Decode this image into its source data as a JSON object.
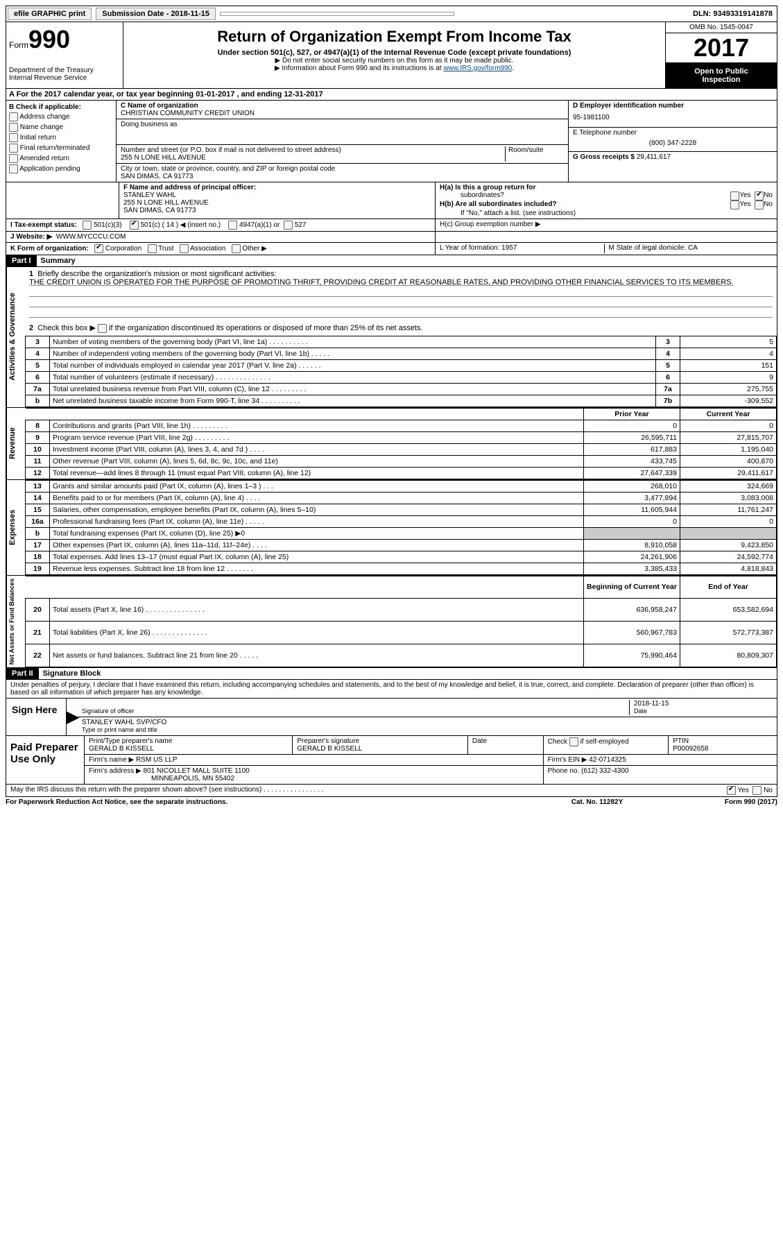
{
  "topbar": {
    "efile": "efile GRAPHIC print",
    "submission": "Submission Date - 2018-11-15",
    "dln": "DLN: 93493319141878"
  },
  "header": {
    "form_word": "Form",
    "form_no": "990",
    "dept1": "Department of the Treasury",
    "dept2": "Internal Revenue Service",
    "title": "Return of Organization Exempt From Income Tax",
    "sub": "Under section 501(c), 527, or 4947(a)(1) of the Internal Revenue Code (except private foundations)",
    "note1": "▶ Do not enter social security numbers on this form as it may be made public.",
    "note2": "▶ Information about Form 990 and its instructions is at ",
    "link": "www.IRS.gov/form990",
    "omb": "OMB No. 1545-0047",
    "year": "2017",
    "open1": "Open to Public",
    "open2": "Inspection"
  },
  "row_a": "A  For the 2017 calendar year, or tax year beginning 01-01-2017    , and ending 12-31-2017",
  "col_b": {
    "hdr": "B Check if applicable:",
    "items": [
      "Address change",
      "Name change",
      "Initial return",
      "Final return/terminated",
      "Amended return",
      "Application pending"
    ]
  },
  "col_c": {
    "name_lbl": "C Name of organization",
    "name": "CHRISTIAN COMMUNITY CREDIT UNION",
    "dba_lbl": "Doing business as",
    "dba": "",
    "addr_lbl": "Number and street (or P.O. box if mail is not delivered to street address)",
    "room_lbl": "Room/suite",
    "addr": "255 N LONE HILL AVENUE",
    "city_lbl": "City or town, state or province, country, and ZIP or foreign postal code",
    "city": "SAN DIMAS, CA  91773"
  },
  "col_d": {
    "ein_lbl": "D Employer identification number",
    "ein": "95-1981100",
    "tel_lbl": "E Telephone number",
    "tel": "(800) 347-2228",
    "gross_lbl": "G Gross receipts $",
    "gross": "29,411,617"
  },
  "row_f": {
    "lbl": "F Name and address of principal officer:",
    "name": "STANLEY WAHL",
    "addr1": "255 N LONE HILL AVENUE",
    "addr2": "SAN DIMAS, CA  91773"
  },
  "row_h": {
    "ha": "H(a)  Is this a group return for",
    "ha2": "subordinates?",
    "hb": "H(b)  Are all subordinates included?",
    "hb2": "If \"No,\" attach a list. (see instructions)",
    "hc": "H(c)  Group exemption number ▶",
    "yes": "Yes",
    "no": "No"
  },
  "row_i": {
    "lbl": "I  Tax-exempt status:",
    "o1": "501(c)(3)",
    "o2": "501(c) ( 14 ) ◀ (insert no.)",
    "o3": "4947(a)(1) or",
    "o4": "527"
  },
  "row_j": {
    "lbl": "J  Website: ▶",
    "val": "WWW.MYCCCU.COM"
  },
  "row_k": {
    "lbl": "K Form of organization:",
    "o1": "Corporation",
    "o2": "Trust",
    "o3": "Association",
    "o4": "Other ▶"
  },
  "row_lm": {
    "l": "L Year of formation: 1957",
    "m": "M State of legal domicile: CA"
  },
  "part1": {
    "hdr": "Part I",
    "title": "Summary",
    "l1_lbl": "1  Briefly describe the organization's mission or most significant activities:",
    "l1_text": "THE CREDIT UNION IS OPERATED FOR THE PURPOSE OF PROMOTING THRIFT, PROVIDING CREDIT AT REASONABLE RATES, AND PROVIDING OTHER FINANCIAL SERVICES TO ITS MEMBERS.",
    "l2": "2  Check this box ▶      if the organization discontinued its operations or disposed of more than 25% of its net assets.",
    "vtab1": "Activities & Governance",
    "vtab2": "Revenue",
    "vtab3": "Expenses",
    "vtab4": "Net Assets or Fund Balances",
    "gov_rows": [
      {
        "n": "3",
        "d": "Number of voting members of the governing body (Part VI, line 1a)  .   .   .   .   .   .   .   .   .   .",
        "b": "3",
        "v": "5"
      },
      {
        "n": "4",
        "d": "Number of independent voting members of the governing body (Part VI, line 1b)   .   .   .   .   .",
        "b": "4",
        "v": "4"
      },
      {
        "n": "5",
        "d": "Total number of individuals employed in calendar year 2017 (Part V, line 2a)   .   .   .   .   .   .",
        "b": "5",
        "v": "151"
      },
      {
        "n": "6",
        "d": "Total number of volunteers (estimate if necessary)   .   .   .   .   .   .   .   .   .   .   .   .   .   .",
        "b": "6",
        "v": "9"
      },
      {
        "n": "7a",
        "d": "Total unrelated business revenue from Part VIII, column (C), line 12  .   .   .   .   .   .   .   .   .",
        "b": "7a",
        "v": "275,755"
      },
      {
        "n": "b",
        "d": "Net unrelated business taxable income from Form 990-T, line 34  .   .   .   .   .   .   .   .   .   .",
        "b": "7b",
        "v": "-309,552"
      }
    ],
    "py_hdr": "Prior Year",
    "cy_hdr": "Current Year",
    "rev_rows": [
      {
        "n": "8",
        "d": "Contributions and grants (Part VIII, line 1h)   .   .   .   .   .   .   .   .   .",
        "py": "0",
        "cy": "0"
      },
      {
        "n": "9",
        "d": "Program service revenue (Part VIII, line 2g)   .   .   .   .   .   .   .   .   .",
        "py": "26,595,711",
        "cy": "27,815,707"
      },
      {
        "n": "10",
        "d": "Investment income (Part VIII, column (A), lines 3, 4, and 7d )   .   .   .   .",
        "py": "617,883",
        "cy": "1,195,040"
      },
      {
        "n": "11",
        "d": "Other revenue (Part VIII, column (A), lines 5, 6d, 8c, 9c, 10c, and 11e)",
        "py": "433,745",
        "cy": "400,870"
      },
      {
        "n": "12",
        "d": "Total revenue—add lines 8 through 11 (must equal Part VIII, column (A), line 12)",
        "py": "27,647,339",
        "cy": "29,411,617"
      }
    ],
    "exp_rows": [
      {
        "n": "13",
        "d": "Grants and similar amounts paid (Part IX, column (A), lines 1–3 )  .   .   .",
        "py": "268,010",
        "cy": "324,669"
      },
      {
        "n": "14",
        "d": "Benefits paid to or for members (Part IX, column (A), line 4)  .   .   .   .",
        "py": "3,477,894",
        "cy": "3,083,008"
      },
      {
        "n": "15",
        "d": "Salaries, other compensation, employee benefits (Part IX, column (A), lines 5–10)",
        "py": "11,605,944",
        "cy": "11,761,247"
      },
      {
        "n": "16a",
        "d": "Professional fundraising fees (Part IX, column (A), line 11e)  .   .   .   .   .",
        "py": "0",
        "cy": "0"
      },
      {
        "n": "b",
        "d": "Total fundraising expenses (Part IX, column (D), line 25) ▶0",
        "py": "SHADE",
        "cy": "SHADE"
      },
      {
        "n": "17",
        "d": "Other expenses (Part IX, column (A), lines 11a–11d, 11f–24e)  .   .   .   .",
        "py": "8,910,058",
        "cy": "9,423,850"
      },
      {
        "n": "18",
        "d": "Total expenses. Add lines 13–17 (must equal Part IX, column (A), line 25)",
        "py": "24,261,906",
        "cy": "24,592,774"
      },
      {
        "n": "19",
        "d": "Revenue less expenses. Subtract line 18 from line 12  .   .   .   .   .   .   .",
        "py": "3,385,433",
        "cy": "4,818,843"
      }
    ],
    "by_hdr": "Beginning of Current Year",
    "ey_hdr": "End of Year",
    "na_rows": [
      {
        "n": "20",
        "d": "Total assets (Part X, line 16)  .   .   .   .   .   .   .   .   .   .   .   .   .   .   .",
        "py": "636,958,247",
        "cy": "653,582,694"
      },
      {
        "n": "21",
        "d": "Total liabilities (Part X, line 26)  .   .   .   .   .   .   .   .   .   .   .   .   .   .",
        "py": "560,967,783",
        "cy": "572,773,387"
      },
      {
        "n": "22",
        "d": "Net assets or fund balances. Subtract line 21 from line 20  .   .   .   .   .",
        "py": "75,990,464",
        "cy": "80,809,307"
      }
    ]
  },
  "part2": {
    "hdr": "Part II",
    "title": "Signature Block",
    "decl": "Under penalties of perjury, I declare that I have examined this return, including accompanying schedules and statements, and to the best of my knowledge and belief, it is true, correct, and complete. Declaration of preparer (other than officer) is based on all information of which preparer has any knowledge."
  },
  "sign": {
    "lbl": "Sign Here",
    "sig_lbl": "Signature of officer",
    "date_lbl": "Date",
    "date": "2018-11-15",
    "name": "STANLEY WAHL SVP/CFO",
    "name_lbl": "Type or print name and title"
  },
  "prep": {
    "lbl": "Paid Preparer Use Only",
    "p1": "Print/Type preparer's name",
    "p1v": "GERALD B KISSELL",
    "p2": "Preparer's signature",
    "p2v": "GERALD B KISSELL",
    "p3": "Date",
    "p4": "Check       if self-employed",
    "p5": "PTIN",
    "p5v": "P00092658",
    "firm_lbl": "Firm's name     ▶",
    "firm": "RSM US LLP",
    "ein_lbl": "Firm's EIN ▶",
    "ein": "42-0714325",
    "addr_lbl": "Firm's address ▶",
    "addr1": "801 NICOLLET MALL SUITE 1100",
    "addr2": "MINNEAPOLIS, MN  55402",
    "phone_lbl": "Phone no.",
    "phone": "(612) 332-4300"
  },
  "discuss": {
    "q": "May the IRS discuss this return with the preparer shown above? (see instructions)   .   .   .   .   .   .   .   .   .   .   .   .   .   .   .   .",
    "yes": "Yes",
    "no": "No"
  },
  "footer": {
    "left": "For Paperwork Reduction Act Notice, see the separate instructions.",
    "mid": "Cat. No. 11282Y",
    "right": "Form 990 (2017)"
  }
}
